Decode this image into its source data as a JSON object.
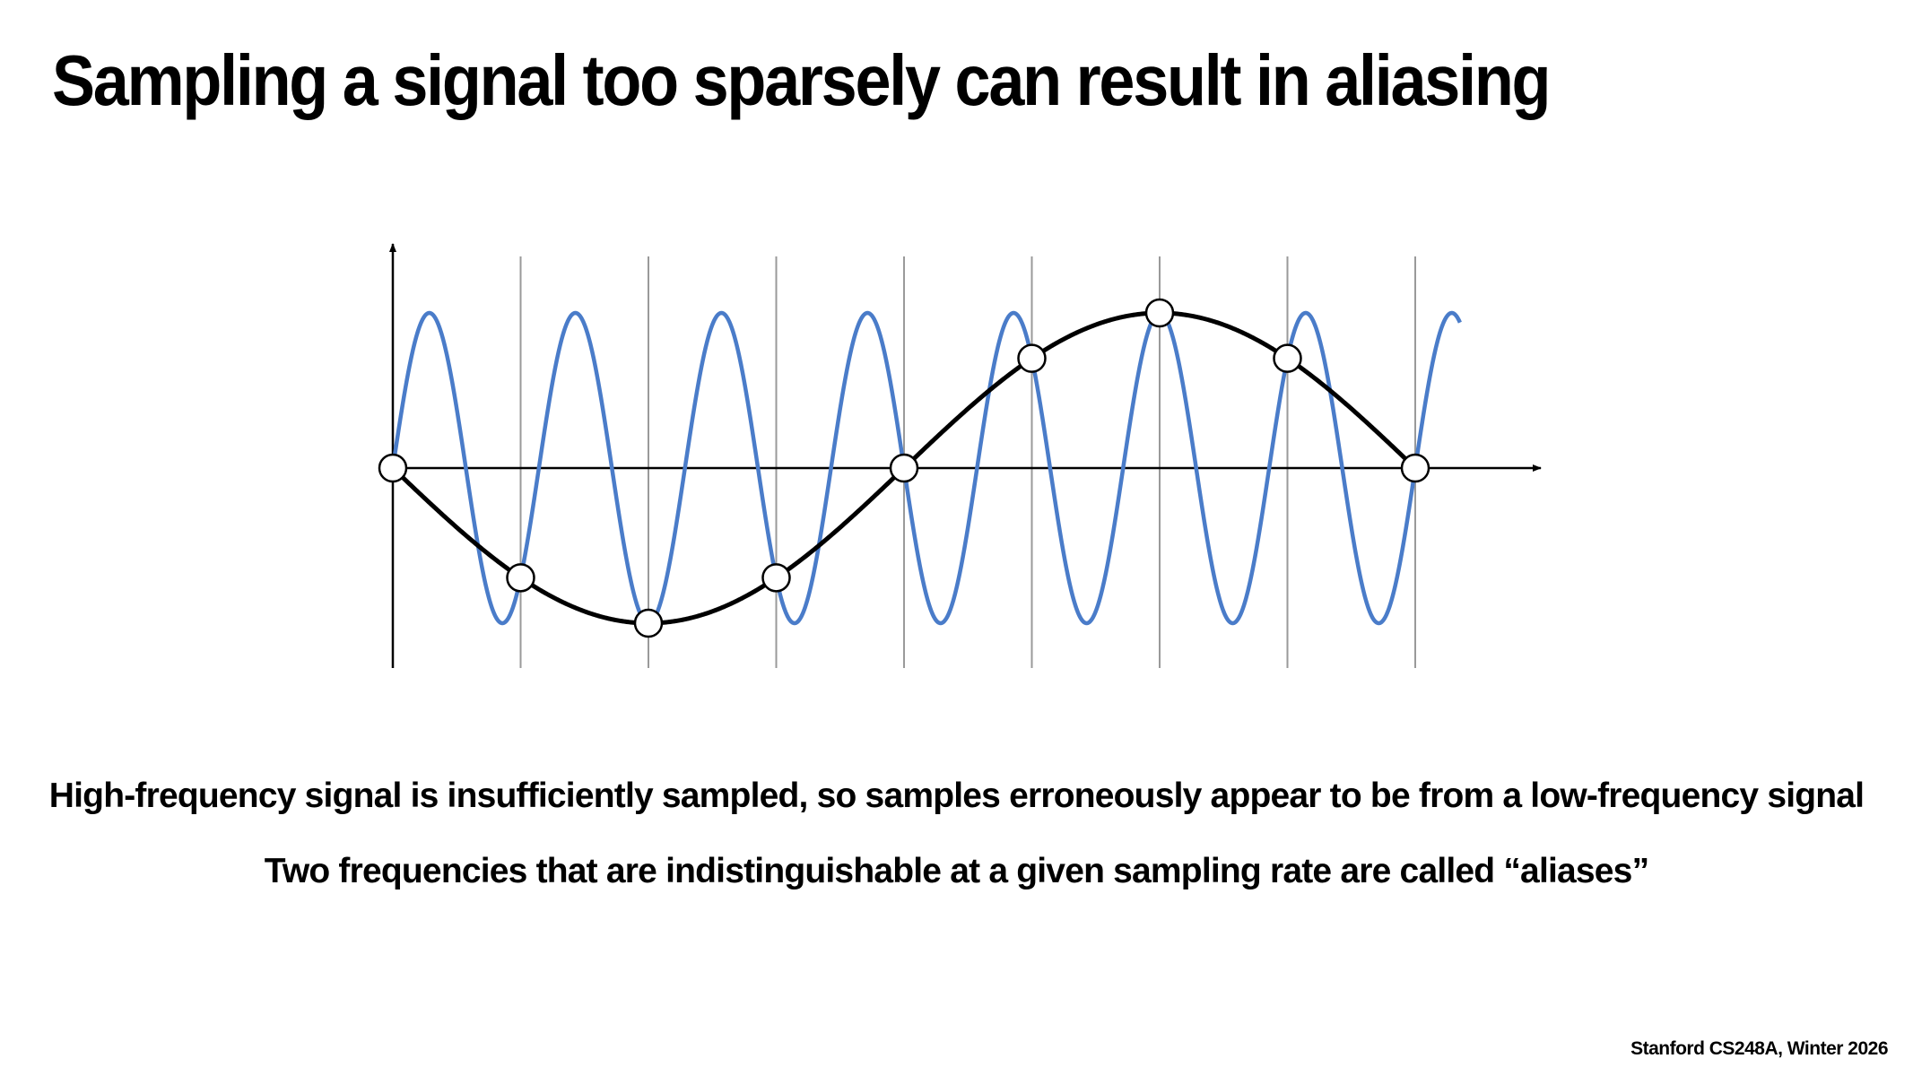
{
  "slide": {
    "title": "Sampling a signal too sparsely can result in aliasing",
    "caption_1": "High-frequency signal is insufficiently sampled, so samples erroneously appear to be from a low-frequency signal",
    "caption_2": "Two frequencies that are indistinguishable at a given sampling rate are called “aliases”",
    "footer": "Stanford CS248A, Winter 2026"
  },
  "diagram": {
    "colors": {
      "high_frequency_signal": "#4a7cc9",
      "low_frequency_signal": "#000000",
      "sample_lines": "#9a9a9a",
      "axes": "#000000",
      "sample_fill": "#ffffff"
    },
    "high_frequency_cycles_per_sample": 0.875,
    "low_frequency_cycles_per_sample": -0.125,
    "sample_count": 9,
    "sample_values": [
      0,
      -0.7071,
      -1,
      -0.7071,
      0,
      0.7071,
      1,
      0.7071,
      0
    ]
  }
}
